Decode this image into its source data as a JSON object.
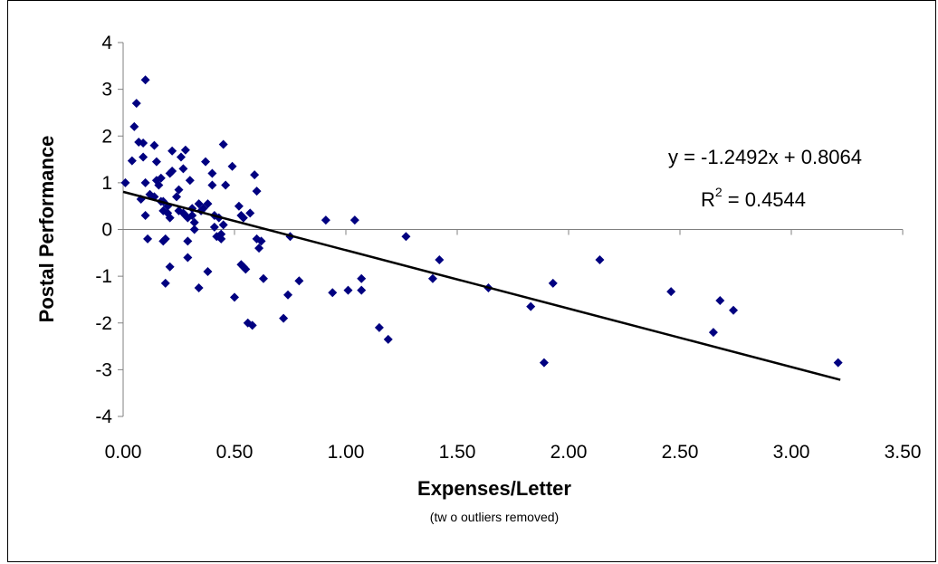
{
  "chart_data": {
    "type": "scatter",
    "xlabel": "Expenses/Letter",
    "x_note": "(tw o outliers removed)",
    "ylabel": "Postal Performance",
    "xlim": [
      0,
      3.5
    ],
    "ylim": [
      -4,
      4
    ],
    "x_ticks": [
      "0.00",
      "0.50",
      "1.00",
      "1.50",
      "2.00",
      "2.50",
      "3.00",
      "3.50"
    ],
    "y_ticks": [
      "4",
      "3",
      "2",
      "1",
      "0",
      "-1",
      "-2",
      "-3",
      "-4"
    ],
    "grid": false,
    "marker_color": "#000080",
    "trendline": {
      "equation": "y = -1.2492x + 0.8064",
      "r2_prefix": "R",
      "r2_sup": "2",
      "r2_suffix": " = 0.4544",
      "slope": -1.2492,
      "intercept": 0.8064,
      "x_range": [
        0,
        3.22
      ],
      "color": "#000000"
    },
    "points": [
      [
        0.01,
        1.0
      ],
      [
        0.04,
        1.47
      ],
      [
        0.05,
        2.2
      ],
      [
        0.06,
        2.7
      ],
      [
        0.07,
        1.87
      ],
      [
        0.08,
        0.65
      ],
      [
        0.09,
        1.85
      ],
      [
        0.09,
        1.55
      ],
      [
        0.1,
        3.2
      ],
      [
        0.1,
        1.0
      ],
      [
        0.1,
        0.3
      ],
      [
        0.11,
        -0.2
      ],
      [
        0.12,
        0.75
      ],
      [
        0.14,
        0.7
      ],
      [
        0.14,
        1.8
      ],
      [
        0.15,
        1.05
      ],
      [
        0.15,
        1.45
      ],
      [
        0.16,
        0.95
      ],
      [
        0.17,
        1.1
      ],
      [
        0.17,
        0.6
      ],
      [
        0.18,
        0.6
      ],
      [
        0.18,
        -0.25
      ],
      [
        0.18,
        0.4
      ],
      [
        0.19,
        -1.15
      ],
      [
        0.19,
        -0.2
      ],
      [
        0.2,
        0.5
      ],
      [
        0.2,
        0.35
      ],
      [
        0.21,
        -0.8
      ],
      [
        0.21,
        1.2
      ],
      [
        0.21,
        0.25
      ],
      [
        0.22,
        1.25
      ],
      [
        0.22,
        1.68
      ],
      [
        0.24,
        0.7
      ],
      [
        0.25,
        0.85
      ],
      [
        0.25,
        0.4
      ],
      [
        0.26,
        1.55
      ],
      [
        0.27,
        1.3
      ],
      [
        0.27,
        0.35
      ],
      [
        0.28,
        1.7
      ],
      [
        0.28,
        0.3
      ],
      [
        0.29,
        0.25
      ],
      [
        0.29,
        -0.6
      ],
      [
        0.29,
        -0.25
      ],
      [
        0.3,
        1.05
      ],
      [
        0.31,
        0.45
      ],
      [
        0.31,
        0.3
      ],
      [
        0.32,
        0.15
      ],
      [
        0.32,
        0.0
      ],
      [
        0.34,
        -1.25
      ],
      [
        0.34,
        0.55
      ],
      [
        0.35,
        0.4
      ],
      [
        0.36,
        0.45
      ],
      [
        0.37,
        1.45
      ],
      [
        0.38,
        0.55
      ],
      [
        0.38,
        -0.9
      ],
      [
        0.4,
        0.95
      ],
      [
        0.4,
        1.2
      ],
      [
        0.41,
        0.3
      ],
      [
        0.41,
        0.05
      ],
      [
        0.42,
        -0.15
      ],
      [
        0.43,
        0.25
      ],
      [
        0.44,
        -0.1
      ],
      [
        0.44,
        -0.2
      ],
      [
        0.45,
        0.1
      ],
      [
        0.45,
        1.82
      ],
      [
        0.46,
        0.95
      ],
      [
        0.49,
        1.35
      ],
      [
        0.5,
        -1.45
      ],
      [
        0.52,
        0.5
      ],
      [
        0.53,
        0.3
      ],
      [
        0.53,
        -0.75
      ],
      [
        0.54,
        0.25
      ],
      [
        0.54,
        -0.8
      ],
      [
        0.55,
        -0.85
      ],
      [
        0.56,
        -2.0
      ],
      [
        0.57,
        0.35
      ],
      [
        0.58,
        -2.05
      ],
      [
        0.59,
        1.17
      ],
      [
        0.6,
        0.82
      ],
      [
        0.6,
        -0.2
      ],
      [
        0.61,
        -0.4
      ],
      [
        0.62,
        -0.25
      ],
      [
        0.63,
        -1.05
      ],
      [
        0.72,
        -1.9
      ],
      [
        0.74,
        -1.4
      ],
      [
        0.75,
        -0.15
      ],
      [
        0.79,
        -1.1
      ],
      [
        0.91,
        0.2
      ],
      [
        0.94,
        -1.35
      ],
      [
        1.01,
        -1.3
      ],
      [
        1.04,
        0.2
      ],
      [
        1.07,
        -1.05
      ],
      [
        1.07,
        -1.3
      ],
      [
        1.15,
        -2.1
      ],
      [
        1.19,
        -2.35
      ],
      [
        1.27,
        -0.15
      ],
      [
        1.39,
        -1.05
      ],
      [
        1.42,
        -0.65
      ],
      [
        1.64,
        -1.25
      ],
      [
        1.83,
        -1.65
      ],
      [
        1.89,
        -2.85
      ],
      [
        1.93,
        -1.15
      ],
      [
        2.14,
        -0.65
      ],
      [
        2.46,
        -1.33
      ],
      [
        2.65,
        -2.2
      ],
      [
        2.68,
        -1.52
      ],
      [
        2.74,
        -1.73
      ],
      [
        3.21,
        -2.85
      ]
    ]
  }
}
